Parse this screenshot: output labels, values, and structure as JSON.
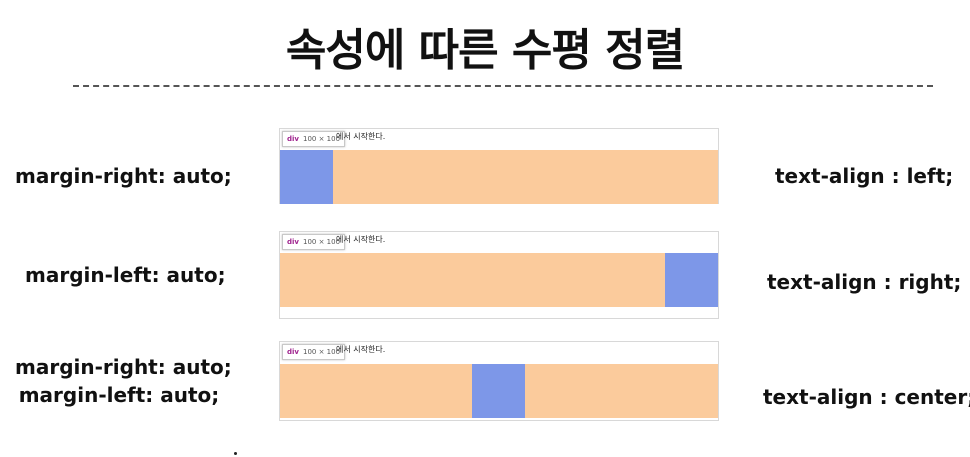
{
  "title": "속성에 따른 수평 정렬",
  "panel_caption": "에서 시작한다.",
  "tooltip": {
    "tag": "div",
    "dim": "100 × 100"
  },
  "rows": [
    {
      "margin_lines": [
        "margin-right: auto;"
      ],
      "text_align": "text-align : left;",
      "box_position": "left"
    },
    {
      "margin_lines": [
        "margin-left: auto;"
      ],
      "text_align": "text-align : right;",
      "box_position": "right"
    },
    {
      "margin_lines": [
        "margin-right: auto;",
        "margin-left: auto;"
      ],
      "text_align": "text-align : center;",
      "box_position": "center"
    }
  ],
  "colors": {
    "bar": "#fbcb9c",
    "box": "#7d97e8",
    "tooltip_tag": "#a0248f"
  }
}
